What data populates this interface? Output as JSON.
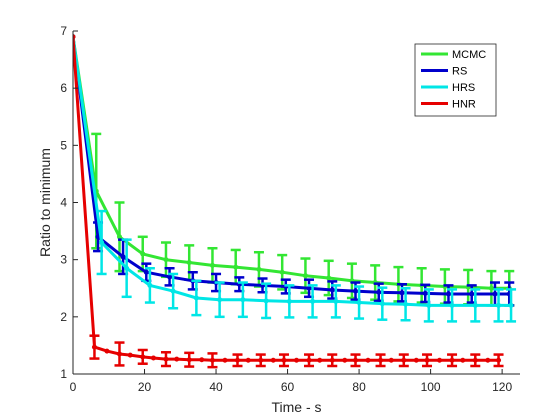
{
  "chart_data": {
    "type": "line",
    "title": "",
    "xlabel": "Time - s",
    "ylabel": "Ratio to minimum",
    "xlim": [
      0,
      125
    ],
    "ylim": [
      1,
      7
    ],
    "xticks": [
      0,
      20,
      40,
      60,
      80,
      100,
      120
    ],
    "yticks": [
      1,
      2,
      3,
      4,
      5,
      6,
      7
    ],
    "grid": false,
    "legend_position": "top-right",
    "series": [
      {
        "name": "MCMC",
        "color": "#33e633",
        "x": [
          0,
          6.5,
          13,
          19.5,
          26,
          32.5,
          39,
          45.5,
          52,
          58.5,
          65,
          71.5,
          78,
          84.5,
          91,
          97.5,
          104,
          110.5,
          117,
          122
        ],
        "y": [
          6.9,
          4.2,
          3.4,
          3.1,
          3.0,
          2.95,
          2.9,
          2.87,
          2.83,
          2.78,
          2.72,
          2.68,
          2.63,
          2.6,
          2.57,
          2.55,
          2.53,
          2.52,
          2.5,
          2.5
        ],
        "err": [
          0,
          1.0,
          0.6,
          0.3,
          0.3,
          0.3,
          0.3,
          0.3,
          0.3,
          0.3,
          0.3,
          0.3,
          0.3,
          0.3,
          0.3,
          0.3,
          0.3,
          0.3,
          0.3,
          0.3
        ]
      },
      {
        "name": "RS",
        "color": "#0000cc",
        "x": [
          0,
          7,
          14,
          20.5,
          27,
          33.5,
          40,
          46.5,
          53,
          59.5,
          66,
          72.5,
          79,
          85.5,
          92,
          98.5,
          105,
          111.5,
          118,
          122
        ],
        "y": [
          6.9,
          3.4,
          3.05,
          2.78,
          2.7,
          2.63,
          2.6,
          2.57,
          2.55,
          2.53,
          2.5,
          2.47,
          2.45,
          2.43,
          2.42,
          2.41,
          2.4,
          2.4,
          2.4,
          2.4
        ],
        "err": [
          0,
          0.25,
          0.3,
          0.15,
          0.15,
          0.15,
          0.15,
          0.12,
          0.12,
          0.12,
          0.15,
          0.15,
          0.15,
          0.15,
          0.15,
          0.15,
          0.15,
          0.15,
          0.2,
          0.2
        ]
      },
      {
        "name": "HRS",
        "color": "#00e6e6",
        "x": [
          0,
          8,
          15,
          21.5,
          28,
          34.5,
          41,
          47.5,
          54,
          60.5,
          67,
          73.5,
          80,
          86.5,
          93,
          99.5,
          106,
          112.5,
          119,
          122.5
        ],
        "y": [
          6.9,
          3.3,
          2.85,
          2.55,
          2.45,
          2.33,
          2.3,
          2.3,
          2.28,
          2.27,
          2.27,
          2.27,
          2.25,
          2.23,
          2.22,
          2.2,
          2.2,
          2.2,
          2.2,
          2.2
        ],
        "err": [
          0,
          0.55,
          0.5,
          0.3,
          0.3,
          0.3,
          0.3,
          0.3,
          0.3,
          0.28,
          0.28,
          0.28,
          0.28,
          0.28,
          0.28,
          0.28,
          0.28,
          0.28,
          0.28,
          0.28
        ]
      },
      {
        "name": "HNR",
        "color": "#e60000",
        "x": [
          0,
          6,
          9.5,
          13,
          16,
          19.5,
          22.5,
          26,
          29,
          32.5,
          36,
          39,
          42.5,
          46,
          49,
          52.5,
          56,
          59,
          62.5,
          66,
          69,
          72.5,
          76,
          79,
          82.5,
          86,
          89,
          92.5,
          96,
          99,
          102.5,
          106,
          109,
          112.5,
          116,
          119
        ],
        "y": [
          6.9,
          1.47,
          1.4,
          1.35,
          1.33,
          1.3,
          1.28,
          1.26,
          1.26,
          1.25,
          1.25,
          1.24,
          1.24,
          1.24,
          1.24,
          1.24,
          1.24,
          1.24,
          1.24,
          1.24,
          1.24,
          1.24,
          1.24,
          1.24,
          1.24,
          1.24,
          1.24,
          1.24,
          1.24,
          1.24,
          1.24,
          1.24,
          1.24,
          1.24,
          1.24,
          1.24
        ],
        "err": [
          0,
          0.2,
          0,
          0.2,
          0,
          0.12,
          0,
          0.12,
          0,
          0.12,
          0,
          0.12,
          0,
          0.1,
          0,
          0.1,
          0,
          0.1,
          0,
          0.1,
          0,
          0.1,
          0,
          0.1,
          0,
          0.1,
          0,
          0.1,
          0,
          0.1,
          0,
          0.1,
          0,
          0.1,
          0,
          0.1
        ]
      }
    ]
  }
}
